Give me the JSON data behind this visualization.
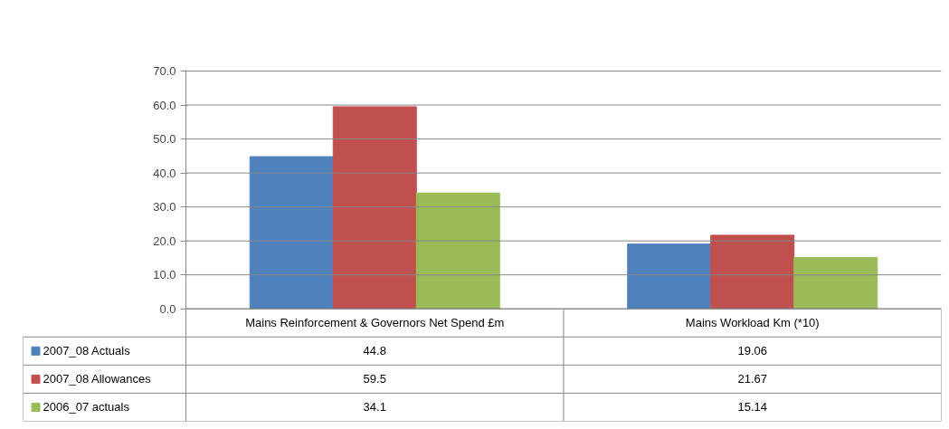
{
  "chart_data": {
    "type": "bar",
    "categories": [
      "Mains Reinforcement & Governors Net Spend £m",
      "Mains Workload Km (*10)"
    ],
    "series": [
      {
        "name": "2007_08 Actuals",
        "color": "#4f81bd",
        "values": [
          44.8,
          19.06
        ]
      },
      {
        "name": "2007_08 Allowances",
        "color": "#c0504d",
        "values": [
          59.5,
          21.67
        ]
      },
      {
        "name": "2006_07 actuals",
        "color": "#9bbb59",
        "values": [
          34.1,
          15.14
        ]
      }
    ],
    "ylim": [
      0,
      70
    ],
    "yticks": [
      {
        "value": 0,
        "label": "0.0"
      },
      {
        "value": 10,
        "label": "10.0"
      },
      {
        "value": 20,
        "label": "20.0"
      },
      {
        "value": 30,
        "label": "30.0"
      },
      {
        "value": 40,
        "label": "40.0"
      },
      {
        "value": 50,
        "label": "50.0"
      },
      {
        "value": 60,
        "label": "60.0"
      },
      {
        "value": 70,
        "label": "70.0"
      }
    ],
    "grid": "y",
    "legend": "bottom",
    "data_labels": true
  }
}
